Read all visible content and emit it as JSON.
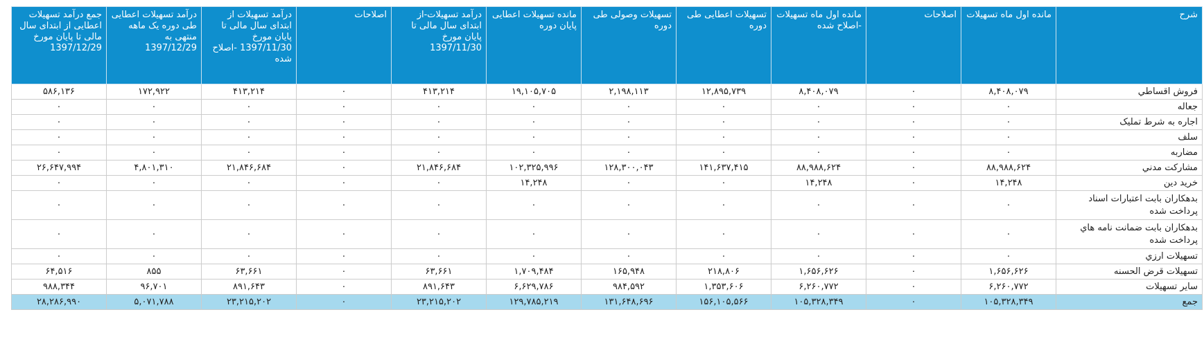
{
  "headers": [
    "شرح",
    "مانده اول ماه تسهیلات",
    "اصلاحات",
    "مانده اول ماه تسهیلات -اصلاح شده",
    "تسهیلات اعطایی طی دوره",
    "تسهیلات وصولی طی دوره",
    "مانده تسهیلات اعطایی پایان دوره",
    "درآمد تسهیلات-از ابتدای سال مالی تا پایان مورخ 1397/11/30",
    "اصلاحات",
    "درآمد تسهیلات از ابتدای سال مالی تا پایان مورخ 1397/11/30 -اصلاح شده",
    "درآمد تسهیلات اعطایی طی دوره یک ماهه منتهی به 1397/12/29",
    "جمع درآمد تسهیلات اعطایی از ابتدای سال مالی تا پایان مورخ 1397/12/29"
  ],
  "rows": [
    {
      "label": "فروش اقساطي",
      "tall": false,
      "values": [
        "۸,۴۰۸,۰۷۹",
        "۰",
        "۸,۴۰۸,۰۷۹",
        "۱۲,۸۹۵,۷۳۹",
        "۲,۱۹۸,۱۱۳",
        "۱۹,۱۰۵,۷۰۵",
        "۴۱۳,۲۱۴",
        "۰",
        "۴۱۳,۲۱۴",
        "۱۷۲,۹۲۲",
        "۵۸۶,۱۳۶"
      ]
    },
    {
      "label": "جعاله",
      "tall": false,
      "values": [
        "۰",
        "۰",
        "۰",
        "۰",
        "۰",
        "۰",
        "۰",
        "۰",
        "۰",
        "۰",
        "۰"
      ]
    },
    {
      "label": "اجاره به شرط تمليک",
      "tall": false,
      "values": [
        "۰",
        "۰",
        "۰",
        "۰",
        "۰",
        "۰",
        "۰",
        "۰",
        "۰",
        "۰",
        "۰"
      ]
    },
    {
      "label": "سلف",
      "tall": false,
      "values": [
        "۰",
        "۰",
        "۰",
        "۰",
        "۰",
        "۰",
        "۰",
        "۰",
        "۰",
        "۰",
        "۰"
      ]
    },
    {
      "label": "مضاربه",
      "tall": false,
      "values": [
        "۰",
        "۰",
        "۰",
        "۰",
        "۰",
        "۰",
        "۰",
        "۰",
        "۰",
        "۰",
        "۰"
      ]
    },
    {
      "label": "مشارکت مدني",
      "tall": false,
      "values": [
        "۸۸,۹۸۸,۶۲۴",
        "۰",
        "۸۸,۹۸۸,۶۲۴",
        "۱۴۱,۶۳۷,۴۱۵",
        "۱۲۸,۳۰۰,۰۴۳",
        "۱۰۲,۳۲۵,۹۹۶",
        "۲۱,۸۴۶,۶۸۴",
        "۰",
        "۲۱,۸۴۶,۶۸۴",
        "۴,۸۰۱,۳۱۰",
        "۲۶,۶۴۷,۹۹۴"
      ]
    },
    {
      "label": "خريد دين",
      "tall": false,
      "values": [
        "۱۴,۲۴۸",
        "۰",
        "۱۴,۲۴۸",
        "۰",
        "۰",
        "۱۴,۲۴۸",
        "۰",
        "۰",
        "۰",
        "۰",
        "۰"
      ]
    },
    {
      "label": "بدهکاران بابت اعتبارات اسناد پرداخت شده",
      "tall": true,
      "values": [
        "۰",
        "۰",
        "۰",
        "۰",
        "۰",
        "۰",
        "۰",
        "۰",
        "۰",
        "۰",
        "۰"
      ]
    },
    {
      "label": "بدهکاران بابت ضمانت نامه هاي پرداخت شده",
      "tall": true,
      "values": [
        "۰",
        "۰",
        "۰",
        "۰",
        "۰",
        "۰",
        "۰",
        "۰",
        "۰",
        "۰",
        "۰"
      ]
    },
    {
      "label": "تسهيلات ارزي",
      "tall": false,
      "values": [
        "۰",
        "۰",
        "۰",
        "۰",
        "۰",
        "۰",
        "۰",
        "۰",
        "۰",
        "۰",
        "۰"
      ]
    },
    {
      "label": "تسهيلات قرض الحسنه",
      "tall": false,
      "values": [
        "۱,۶۵۶,۶۲۶",
        "۰",
        "۱,۶۵۶,۶۲۶",
        "۲۱۸,۸۰۶",
        "۱۶۵,۹۴۸",
        "۱,۷۰۹,۴۸۴",
        "۶۳,۶۶۱",
        "۰",
        "۶۳,۶۶۱",
        "۸۵۵",
        "۶۴,۵۱۶"
      ]
    },
    {
      "label": "ساير تسهيلات",
      "tall": false,
      "values": [
        "۶,۲۶۰,۷۷۲",
        "۰",
        "۶,۲۶۰,۷۷۲",
        "۱,۳۵۳,۶۰۶",
        "۹۸۴,۵۹۲",
        "۶,۶۲۹,۷۸۶",
        "۸۹۱,۶۴۳",
        "۰",
        "۸۹۱,۶۴۳",
        "۹۶,۷۰۱",
        "۹۸۸,۳۴۴"
      ]
    }
  ],
  "total": {
    "label": "جمع",
    "values": [
      "۱۰۵,۳۲۸,۳۴۹",
      "۰",
      "۱۰۵,۳۲۸,۳۴۹",
      "۱۵۶,۱۰۵,۵۶۶",
      "۱۳۱,۶۴۸,۶۹۶",
      "۱۲۹,۷۸۵,۲۱۹",
      "۲۳,۲۱۵,۲۰۲",
      "۰",
      "۲۳,۲۱۵,۲۰۲",
      "۵,۰۷۱,۷۸۸",
      "۲۸,۲۸۶,۹۹۰"
    ]
  },
  "colors": {
    "header_bg": "#0f8fce",
    "total_bg": "#a6d9ee"
  }
}
